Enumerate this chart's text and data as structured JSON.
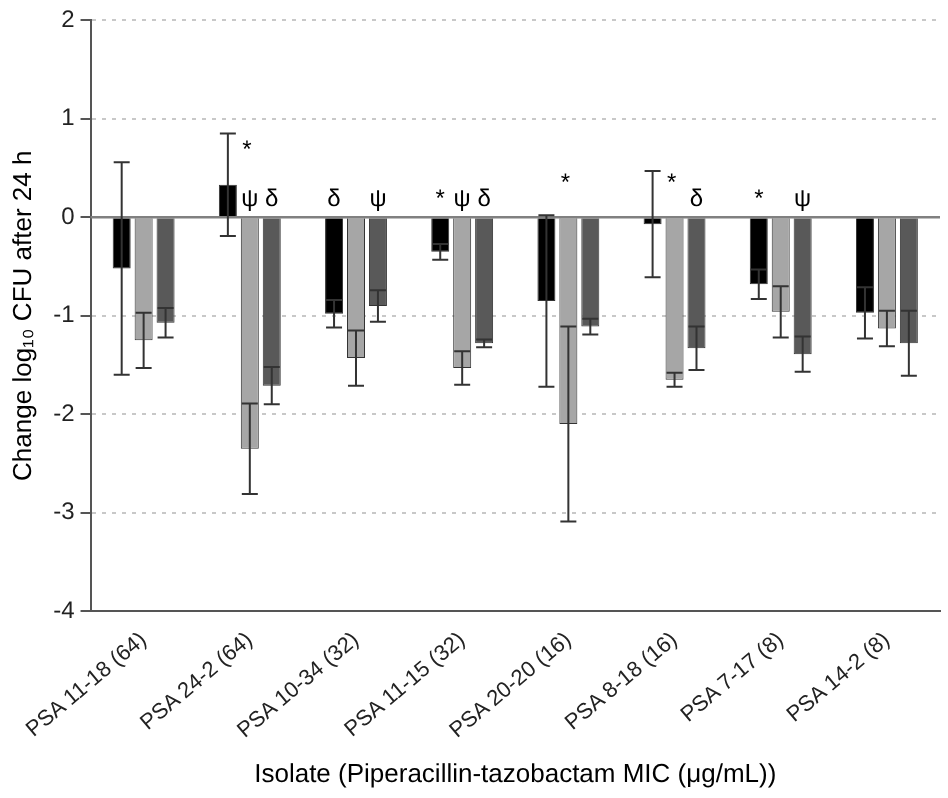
{
  "chart_data": {
    "type": "bar",
    "xlabel": "Isolate (Piperacillin-tazobactam MIC (μg/mL))",
    "ylabel": "Change log₁₀ CFU after 24 h",
    "categories": [
      "PSA 11-18 (64)",
      "PSA 24-2 (64)",
      "PSA 10-34 (32)",
      "PSA 11-15 (32)",
      "PSA 20-20 (16)",
      "PSA 8-18 (16)",
      "PSA 7-17 (8)",
      "PSA 14-2 (8)"
    ],
    "series": [
      {
        "color": "#000000",
        "values": [
          -0.52,
          0.33,
          -0.98,
          -0.35,
          -0.85,
          -0.07,
          -0.68,
          -0.97
        ],
        "errors": [
          1.08,
          0.52,
          0.14,
          0.08,
          0.87,
          0.54,
          0.15,
          0.26
        ],
        "value_labels": [
          null,
          "*",
          "δ",
          "*",
          "*",
          "*",
          "*",
          null
        ]
      },
      {
        "color": "#a6a6a6",
        "values": [
          -1.25,
          -2.35,
          -1.43,
          -1.53,
          -2.1,
          -1.65,
          -0.96,
          -1.13
        ],
        "errors": [
          0.28,
          0.46,
          0.28,
          0.17,
          0.99,
          0.07,
          0.26,
          0.18
        ],
        "value_labels": [
          null,
          "ψ",
          null,
          "ψ",
          null,
          null,
          null,
          null
        ]
      },
      {
        "color": "#595959",
        "values": [
          -1.07,
          -1.71,
          -0.9,
          -1.28,
          -1.11,
          -1.33,
          -1.39,
          -1.28
        ],
        "errors": [
          0.15,
          0.19,
          0.16,
          0.04,
          0.08,
          0.22,
          0.18,
          0.33
        ],
        "value_labels": [
          null,
          "δ",
          "ψ",
          "δ",
          null,
          "δ",
          "ψ",
          null
        ]
      }
    ],
    "ylim": [
      -4,
      2
    ],
    "yticks": [
      -4,
      -3,
      -2,
      -1,
      0,
      1,
      2
    ],
    "grid": "y",
    "line_style": "dotted",
    "ref_lines": [
      {
        "axis": "y",
        "value": 0,
        "line_style": "solid",
        "color": "#808080"
      }
    ],
    "legend": false
  }
}
